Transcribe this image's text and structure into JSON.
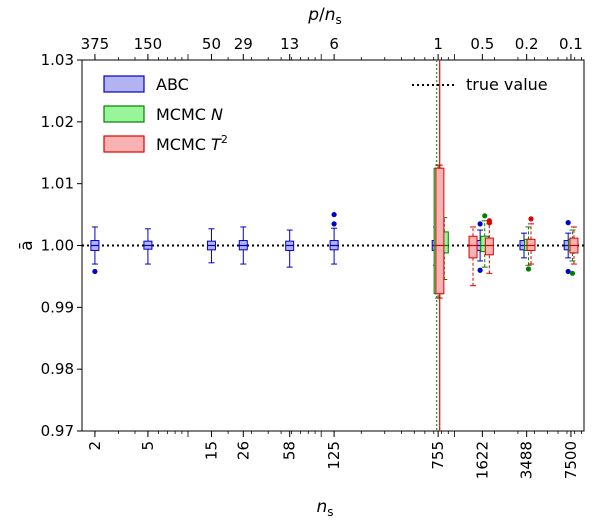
{
  "chart_data": {
    "type": "box",
    "title": "",
    "xlabel": "n_s",
    "x_top_label": "p/n_s",
    "ylabel": "ā",
    "ylim": [
      0.97,
      1.03
    ],
    "yticks": [
      "0.97",
      "0.98",
      "0.99",
      "1.00",
      "1.01",
      "1.02",
      "1.03"
    ],
    "x_scale": "log",
    "bottom_ticks": [
      "2",
      "5",
      "15",
      "26",
      "58",
      "125",
      "755",
      "1622",
      "3488",
      "7500"
    ],
    "top_ticks": [
      "375",
      "150",
      "50",
      "29",
      "13",
      "6",
      "1",
      "0.5",
      "0.2",
      "0.1"
    ],
    "reference_line": {
      "value": 1.0,
      "label": "true value",
      "style": "dotted",
      "color": "#000000"
    },
    "vertical_markers": [
      {
        "x": 755,
        "color": "#2ca02c",
        "style": "dotted"
      },
      {
        "x": 755,
        "color": "#d62728",
        "style": "solid"
      }
    ],
    "legend_position": "upper-left",
    "series": [
      {
        "name": "ABC",
        "color": "#0000cc",
        "fill": "#b3b3f2",
        "boxes": [
          {
            "n_s": 2,
            "whislo": 0.997,
            "q1": 0.9992,
            "med": 1.0,
            "q3": 1.0008,
            "whishi": 1.003,
            "fliers": [
              0.9958
            ]
          },
          {
            "n_s": 5,
            "whislo": 0.997,
            "q1": 0.9994,
            "med": 1.0,
            "q3": 1.0007,
            "whishi": 1.0027,
            "fliers": []
          },
          {
            "n_s": 15,
            "whislo": 0.9972,
            "q1": 0.9993,
            "med": 1.0,
            "q3": 1.0007,
            "whishi": 1.0027,
            "fliers": []
          },
          {
            "n_s": 26,
            "whislo": 0.997,
            "q1": 0.9993,
            "med": 1.0,
            "q3": 1.0008,
            "whishi": 1.003,
            "fliers": []
          },
          {
            "n_s": 58,
            "whislo": 0.9965,
            "q1": 0.9992,
            "med": 1.0,
            "q3": 1.0007,
            "whishi": 1.0025,
            "fliers": []
          },
          {
            "n_s": 125,
            "whislo": 0.997,
            "q1": 0.9993,
            "med": 1.0,
            "q3": 1.0008,
            "whishi": 1.0028,
            "fliers": [
              1.0035,
              1.005
            ]
          },
          {
            "n_s": 730,
            "whislo": 0.9968,
            "q1": 0.9992,
            "med": 1.0,
            "q3": 1.0008,
            "whishi": 1.003,
            "fliers": []
          },
          {
            "n_s": 1560,
            "whislo": 0.9975,
            "q1": 0.9992,
            "med": 1.0,
            "q3": 1.0008,
            "whishi": 1.0025,
            "fliers": [
              0.996,
              1.0035
            ]
          },
          {
            "n_s": 3330,
            "whislo": 0.998,
            "q1": 0.9993,
            "med": 1.0,
            "q3": 1.0008,
            "whishi": 1.002,
            "fliers": []
          },
          {
            "n_s": 7150,
            "whislo": 0.998,
            "q1": 0.9993,
            "med": 1.0,
            "q3": 1.0008,
            "whishi": 1.002,
            "fliers": [
              0.9958,
              1.0037
            ]
          }
        ]
      },
      {
        "name": "MCMC N",
        "color": "#008000",
        "fill": "#99f599",
        "boxes": [
          {
            "n_s": 755,
            "whislo": 0.9915,
            "q1": 0.9922,
            "med": 1.0,
            "q3": 1.0125,
            "whishi": 1.013,
            "fliers": []
          },
          {
            "n_s": 840,
            "whislo": 0.9945,
            "q1": 0.9988,
            "med": 1.0,
            "q3": 1.0022,
            "whishi": 1.0045,
            "fliers": []
          },
          {
            "n_s": 1690,
            "whislo": 0.9965,
            "q1": 0.999,
            "med": 1.0,
            "q3": 1.0015,
            "whishi": 1.004,
            "fliers": [
              1.0048
            ]
          },
          {
            "n_s": 3600,
            "whislo": 0.9968,
            "q1": 0.9992,
            "med": 1.0,
            "q3": 1.001,
            "whishi": 1.003,
            "fliers": [
              0.9962
            ]
          },
          {
            "n_s": 7700,
            "whislo": 0.9975,
            "q1": 0.9992,
            "med": 1.0,
            "q3": 1.001,
            "whishi": 1.0025,
            "fliers": [
              0.9955
            ]
          }
        ]
      },
      {
        "name": "MCMC T²",
        "color": "#dd0000",
        "fill": "#f7b3b3",
        "boxes": [
          {
            "n_s": 778,
            "whislo": 0.9915,
            "q1": 0.9922,
            "med": 1.0,
            "q3": 1.0125,
            "whishi": 1.013,
            "fliers": []
          },
          {
            "n_s": 1380,
            "whislo": 0.9935,
            "q1": 0.998,
            "med": 1.0,
            "q3": 1.0015,
            "whishi": 1.003,
            "fliers": []
          },
          {
            "n_s": 1830,
            "whislo": 0.9955,
            "q1": 0.9985,
            "med": 1.0,
            "q3": 1.0012,
            "whishi": 1.0035,
            "fliers": [
              1.0037,
              1.004
            ]
          },
          {
            "n_s": 3760,
            "whislo": 0.997,
            "q1": 0.9992,
            "med": 1.0,
            "q3": 1.001,
            "whishi": 1.0035,
            "fliers": [
              1.0043
            ]
          },
          {
            "n_s": 7900,
            "whislo": 0.997,
            "q1": 0.9988,
            "med": 1.0,
            "q3": 1.0012,
            "whishi": 1.003,
            "fliers": []
          }
        ]
      }
    ]
  }
}
